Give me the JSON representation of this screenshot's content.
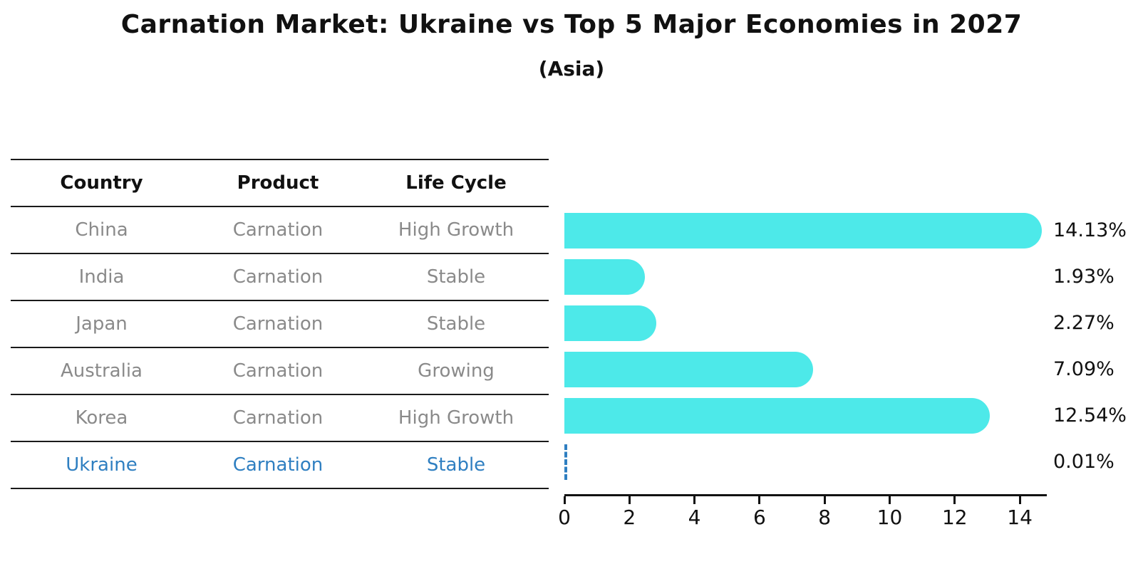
{
  "header": {
    "title": "Carnation Market: Ukraine vs Top 5 Major Economies in 2027",
    "subtitle": "(Asia)"
  },
  "table": {
    "columns": [
      "Country",
      "Product",
      "Life Cycle"
    ],
    "rows": [
      {
        "country": "China",
        "product": "Carnation",
        "life_cycle": "High Growth",
        "highlight": false
      },
      {
        "country": "India",
        "product": "Carnation",
        "life_cycle": "Stable",
        "highlight": false
      },
      {
        "country": "Japan",
        "product": "Carnation",
        "life_cycle": "Stable",
        "highlight": false
      },
      {
        "country": "Australia",
        "product": "Carnation",
        "life_cycle": "Growing",
        "highlight": false
      },
      {
        "country": "Korea",
        "product": "Carnation",
        "life_cycle": "High Growth",
        "highlight": false
      },
      {
        "country": "Ukraine",
        "product": "Carnation",
        "life_cycle": "Stable",
        "highlight": true
      }
    ]
  },
  "chart_data": {
    "type": "bar",
    "orientation": "horizontal",
    "title": "Carnation Market: Ukraine vs Top 5 Major Economies in 2027",
    "subtitle": "(Asia)",
    "categories": [
      "China",
      "India",
      "Japan",
      "Australia",
      "Korea",
      "Ukraine"
    ],
    "values": [
      14.13,
      1.93,
      2.27,
      7.09,
      12.54,
      0.01
    ],
    "value_labels": [
      "14.13%",
      "1.93%",
      "2.27%",
      "7.09%",
      "12.54%",
      "0.01%"
    ],
    "xlabel": "",
    "ylabel": "",
    "xlim": [
      0,
      14.85
    ],
    "x_ticks": [
      0,
      2,
      4,
      6,
      8,
      10,
      12,
      14
    ],
    "grid": false,
    "legend": false,
    "bar_color": "#4de9e9",
    "highlight": {
      "category": "Ukraine",
      "style": "dashed-outline",
      "color": "#2f7fc1"
    }
  }
}
